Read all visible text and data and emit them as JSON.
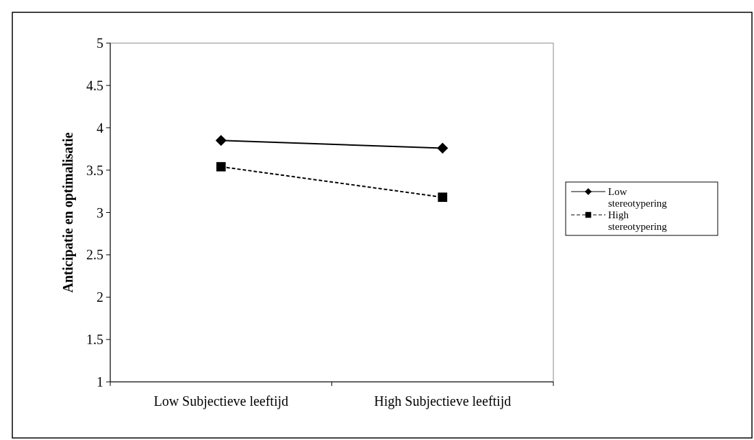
{
  "chart_data": {
    "type": "line",
    "ylabel": "Anticipatie en optimalisatie",
    "categories": [
      "Low Subjectieve leeftijd",
      "High Subjectieve leeftijd"
    ],
    "ylim": [
      1,
      5
    ],
    "yticks": [
      1,
      1.5,
      2,
      2.5,
      3,
      3.5,
      4,
      4.5,
      5
    ],
    "legend": "right",
    "grid": false,
    "series": [
      {
        "name": "Low stereotypering",
        "color": "#000000",
        "values": [
          3.85,
          3.76
        ],
        "marker": "diamond",
        "line_style": "solid"
      },
      {
        "name": "High stereotypering",
        "color": "#000000",
        "values": [
          3.54,
          3.18
        ],
        "marker": "square",
        "line_style": "dashed"
      }
    ]
  }
}
